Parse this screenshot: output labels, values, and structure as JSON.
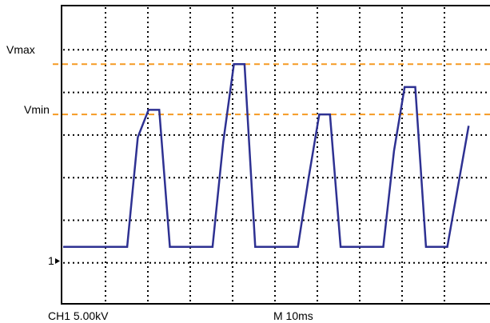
{
  "chart_data": {
    "type": "line",
    "title": "",
    "grid": true,
    "x": [
      0,
      2,
      4,
      6,
      7,
      8,
      9,
      10,
      12,
      14,
      15,
      16,
      17,
      18,
      20,
      22,
      23,
      24,
      25,
      26,
      28,
      30,
      31,
      32,
      33,
      34,
      36,
      38
    ],
    "series": [
      {
        "values": [
          1.25,
          1.25,
          1.25,
          1.25,
          3.65,
          4.25,
          4.25,
          1.25,
          1.25,
          1.25,
          3.55,
          5.25,
          5.25,
          1.25,
          1.25,
          1.25,
          2.75,
          4.15,
          4.15,
          1.25,
          1.25,
          1.25,
          3.35,
          4.75,
          4.75,
          1.25,
          1.25,
          3.9
        ]
      }
    ],
    "xlim": [
      0,
      40
    ],
    "ylim": [
      0,
      6.5
    ],
    "reference_lines": [
      {
        "label": "Vmax",
        "value": 5.25,
        "color": "#f59a23"
      },
      {
        "label": "Vmin",
        "value": 4.15,
        "color": "#f59a23"
      }
    ],
    "ground_marker": {
      "label": "1",
      "value": 1.25
    },
    "trace_color": "#2e3192",
    "channel_label": "CH1  5.00kV",
    "time_label": "M  10ms"
  }
}
